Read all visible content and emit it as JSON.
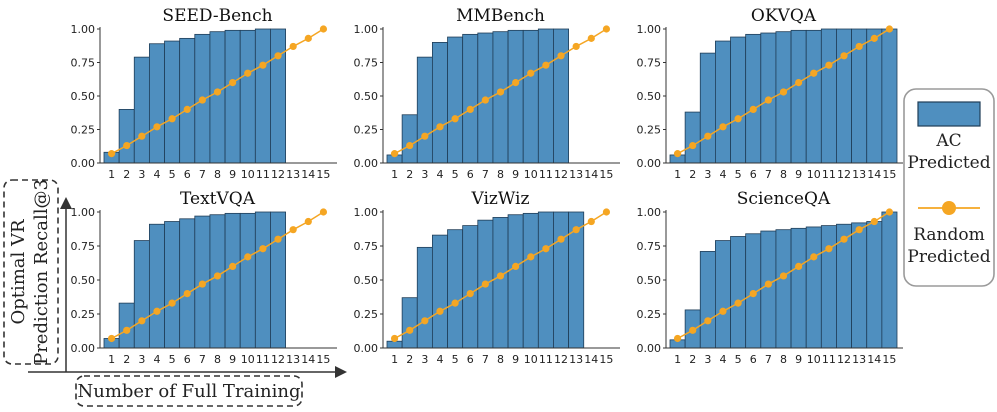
{
  "colors": {
    "bar": "#4f8fbf",
    "bar_edge": "#1f3d57",
    "line": "#f5a623",
    "axis": "#333333"
  },
  "legend": {
    "ac_line1": "AC",
    "ac_line2": "Predicted",
    "random_line1": "Random",
    "random_line2": "Predicted"
  },
  "global_axes": {
    "y_label_line1": "Optimal VR",
    "y_label_line2": "Prediction Recall@3",
    "x_label": "Number of Full Training"
  },
  "chart_data": [
    {
      "type": "bar",
      "title": "SEED-Bench",
      "xlabel": "",
      "ylabel": "",
      "ylim": [
        0,
        1.0
      ],
      "yticks": [
        "0.00",
        "0.25",
        "0.50",
        "0.75",
        "1.00"
      ],
      "categories": [
        "1",
        "2",
        "3",
        "4",
        "5",
        "6",
        "7",
        "8",
        "9",
        "10",
        "11",
        "12",
        "13",
        "14",
        "15"
      ],
      "series": [
        {
          "name": "AC Predicted",
          "type": "bar",
          "values": [
            0.08,
            0.4,
            0.79,
            0.89,
            0.91,
            0.93,
            0.96,
            0.98,
            0.99,
            0.99,
            1.0,
            1.0,
            null,
            null,
            null
          ]
        },
        {
          "name": "Random Predicted",
          "type": "line",
          "values": [
            0.07,
            0.13,
            0.2,
            0.27,
            0.33,
            0.4,
            0.47,
            0.53,
            0.6,
            0.67,
            0.73,
            0.8,
            0.87,
            0.93,
            1.0
          ]
        }
      ]
    },
    {
      "type": "bar",
      "title": "MMBench",
      "xlabel": "",
      "ylabel": "",
      "ylim": [
        0,
        1.0
      ],
      "yticks": [
        "0.00",
        "0.25",
        "0.50",
        "0.75",
        "1.00"
      ],
      "categories": [
        "1",
        "2",
        "3",
        "4",
        "5",
        "6",
        "7",
        "8",
        "9",
        "10",
        "11",
        "12",
        "13",
        "14",
        "15"
      ],
      "series": [
        {
          "name": "AC Predicted",
          "type": "bar",
          "values": [
            0.06,
            0.36,
            0.79,
            0.9,
            0.94,
            0.96,
            0.97,
            0.98,
            0.99,
            0.99,
            1.0,
            1.0,
            null,
            null,
            null
          ]
        },
        {
          "name": "Random Predicted",
          "type": "line",
          "values": [
            0.07,
            0.13,
            0.2,
            0.27,
            0.33,
            0.4,
            0.47,
            0.53,
            0.6,
            0.67,
            0.73,
            0.8,
            0.87,
            0.93,
            1.0
          ]
        }
      ]
    },
    {
      "type": "bar",
      "title": "OKVQA",
      "xlabel": "",
      "ylabel": "",
      "ylim": [
        0,
        1.0
      ],
      "yticks": [
        "0.00",
        "0.25",
        "0.50",
        "0.75",
        "1.00"
      ],
      "categories": [
        "1",
        "2",
        "3",
        "4",
        "5",
        "6",
        "7",
        "8",
        "9",
        "10",
        "11",
        "12",
        "13",
        "14",
        "15"
      ],
      "series": [
        {
          "name": "AC Predicted",
          "type": "bar",
          "values": [
            0.06,
            0.38,
            0.82,
            0.91,
            0.94,
            0.96,
            0.97,
            0.98,
            0.99,
            0.99,
            1.0,
            1.0,
            1.0,
            1.0,
            1.0
          ]
        },
        {
          "name": "Random Predicted",
          "type": "line",
          "values": [
            0.07,
            0.13,
            0.2,
            0.27,
            0.33,
            0.4,
            0.47,
            0.53,
            0.6,
            0.67,
            0.73,
            0.8,
            0.87,
            0.93,
            1.0
          ]
        }
      ]
    },
    {
      "type": "bar",
      "title": "TextVQA",
      "xlabel": "",
      "ylabel": "",
      "ylim": [
        0,
        1.0
      ],
      "yticks": [
        "0.00",
        "0.25",
        "0.50",
        "0.75",
        "1.00"
      ],
      "categories": [
        "1",
        "2",
        "3",
        "4",
        "5",
        "6",
        "7",
        "8",
        "9",
        "10",
        "11",
        "12",
        "13",
        "14",
        "15"
      ],
      "series": [
        {
          "name": "AC Predicted",
          "type": "bar",
          "values": [
            0.07,
            0.33,
            0.79,
            0.91,
            0.93,
            0.95,
            0.97,
            0.98,
            0.99,
            0.99,
            1.0,
            1.0,
            null,
            null,
            null
          ]
        },
        {
          "name": "Random Predicted",
          "type": "line",
          "values": [
            0.07,
            0.13,
            0.2,
            0.27,
            0.33,
            0.4,
            0.47,
            0.53,
            0.6,
            0.67,
            0.73,
            0.8,
            0.87,
            0.93,
            1.0
          ]
        }
      ]
    },
    {
      "type": "bar",
      "title": "VizWiz",
      "xlabel": "",
      "ylabel": "",
      "ylim": [
        0,
        1.0
      ],
      "yticks": [
        "0.00",
        "0.25",
        "0.50",
        "0.75",
        "1.00"
      ],
      "categories": [
        "1",
        "2",
        "3",
        "4",
        "5",
        "6",
        "7",
        "8",
        "9",
        "10",
        "11",
        "12",
        "13",
        "14",
        "15"
      ],
      "series": [
        {
          "name": "AC Predicted",
          "type": "bar",
          "values": [
            0.05,
            0.37,
            0.74,
            0.83,
            0.87,
            0.9,
            0.94,
            0.96,
            0.98,
            0.99,
            1.0,
            1.0,
            1.0,
            null,
            null
          ]
        },
        {
          "name": "Random Predicted",
          "type": "line",
          "values": [
            0.07,
            0.13,
            0.2,
            0.27,
            0.33,
            0.4,
            0.47,
            0.53,
            0.6,
            0.67,
            0.73,
            0.8,
            0.87,
            0.93,
            1.0
          ]
        }
      ]
    },
    {
      "type": "bar",
      "title": "ScienceQA",
      "xlabel": "",
      "ylabel": "",
      "ylim": [
        0,
        1.0
      ],
      "yticks": [
        "0.00",
        "0.25",
        "0.50",
        "0.75",
        "1.00"
      ],
      "categories": [
        "1",
        "2",
        "3",
        "4",
        "5",
        "6",
        "7",
        "8",
        "9",
        "10",
        "11",
        "12",
        "13",
        "14",
        "15"
      ],
      "series": [
        {
          "name": "AC Predicted",
          "type": "bar",
          "values": [
            0.06,
            0.28,
            0.71,
            0.79,
            0.82,
            0.84,
            0.86,
            0.87,
            0.88,
            0.89,
            0.9,
            0.91,
            0.92,
            0.93,
            1.0
          ]
        },
        {
          "name": "Random Predicted",
          "type": "line",
          "values": [
            0.07,
            0.13,
            0.2,
            0.27,
            0.33,
            0.4,
            0.47,
            0.53,
            0.6,
            0.67,
            0.73,
            0.8,
            0.87,
            0.93,
            1.0
          ]
        }
      ]
    }
  ]
}
